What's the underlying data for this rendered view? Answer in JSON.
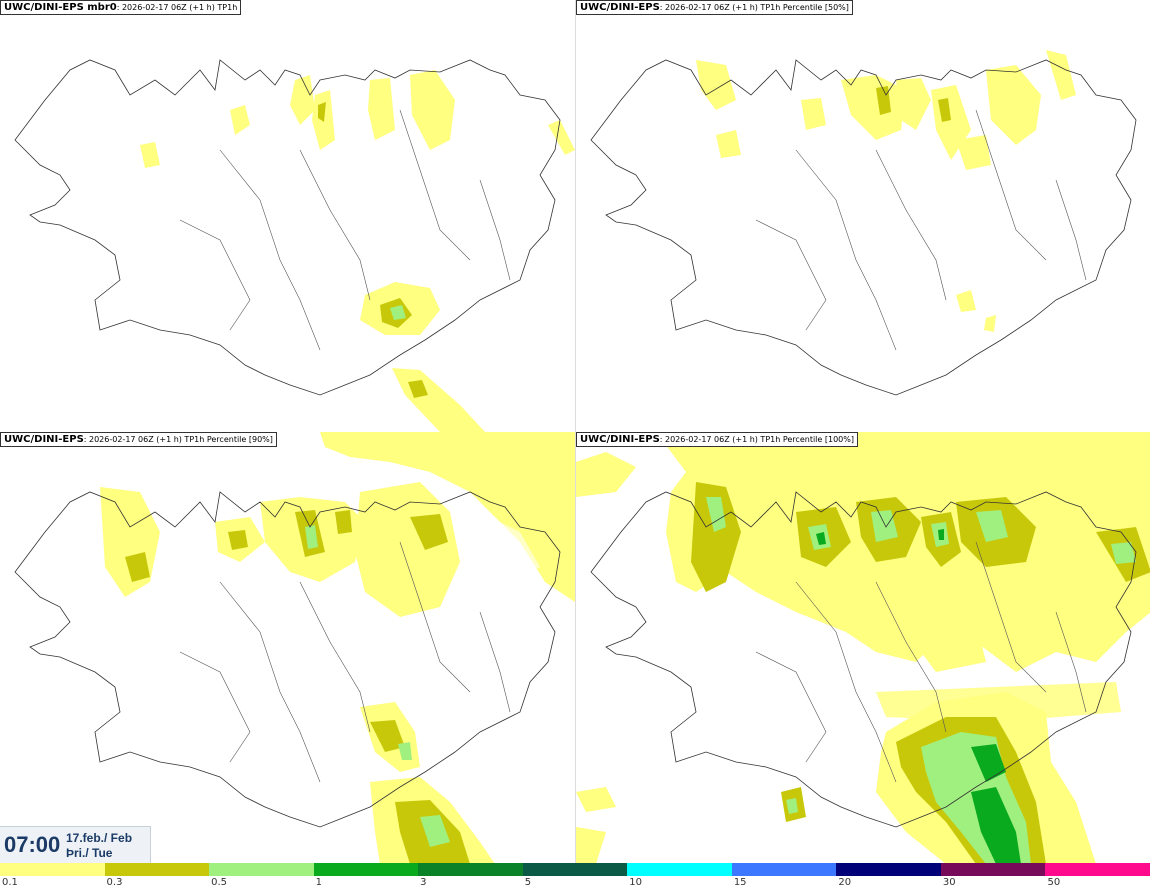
{
  "panels": [
    {
      "title_bold": "UWC/DINI-EPS mbr0",
      "title_rest": ": 2026-02-17 06Z (+1 h) TP1h"
    },
    {
      "title_bold": "UWC/DINI-EPS",
      "title_rest": ": 2026-02-17 06Z (+1 h) TP1h Percentile [50%]"
    },
    {
      "title_bold": "UWC/DINI-EPS",
      "title_rest": ": 2026-02-17 06Z (+1 h) TP1h Percentile [90%]"
    },
    {
      "title_bold": "UWC/DINI-EPS",
      "title_rest": ": 2026-02-17 06Z (+1 h) TP1h Percentile [100%]"
    }
  ],
  "time": {
    "clock": "07:00",
    "date_line": "17.feb./ Feb",
    "day_line": "Þri./ Tue"
  },
  "legend": {
    "labels": [
      "0.1",
      "0.3",
      "0.5",
      "1",
      "3",
      "5",
      "10",
      "15",
      "20",
      "30",
      "50"
    ],
    "colors": [
      "#ffff80",
      "#c8c80a",
      "#a0f080",
      "#0aaa1e",
      "#0a8228",
      "#0a5a46",
      "#00ffff",
      "#3c78ff",
      "#000078",
      "#780a5a",
      "#ff0a8c",
      "#ff0000"
    ]
  },
  "colors": {
    "light": "#ffff80",
    "olive": "#c8c80a",
    "lightgreen": "#a0f080",
    "green": "#0aaa1e",
    "coast": "#333333"
  }
}
